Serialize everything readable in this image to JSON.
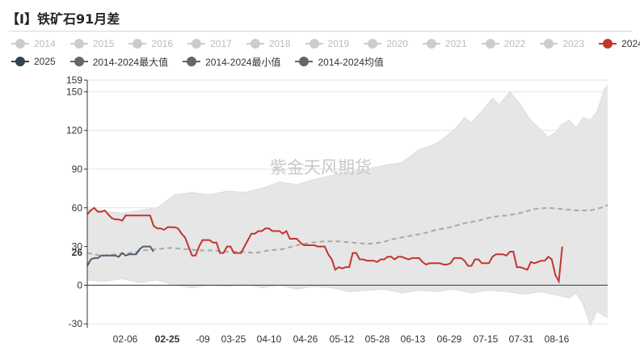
{
  "title": "【I】铁矿石91月差",
  "watermark": "紫金天风期货",
  "colors": {
    "band": "#e6e6e6",
    "avg": "#a9a9a9",
    "s2024": "#c23531",
    "s2025": "#4f5d6e",
    "legend_off": "#cccccc",
    "legend_dark": "#666666",
    "legend_2025": "#2f4554"
  },
  "legend": {
    "row1": [
      {
        "label": "2014",
        "state": "off"
      },
      {
        "label": "2015",
        "state": "off"
      },
      {
        "label": "2016",
        "state": "off"
      },
      {
        "label": "2017",
        "state": "off"
      },
      {
        "label": "2018",
        "state": "off"
      },
      {
        "label": "2019",
        "state": "off"
      },
      {
        "label": "2020",
        "state": "off"
      },
      {
        "label": "2021",
        "state": "off"
      },
      {
        "label": "2022",
        "state": "off"
      },
      {
        "label": "2023",
        "state": "off"
      },
      {
        "label": "2024",
        "state": "on-red"
      }
    ],
    "row2": [
      {
        "label": "2025",
        "state": "on-2025"
      },
      {
        "label": "2014-2024最大值",
        "state": "on-dark"
      },
      {
        "label": "2014-2024最小值",
        "state": "on-dark"
      },
      {
        "label": "2014-2024均值",
        "state": "on-dark"
      }
    ]
  },
  "chart_data": {
    "type": "line",
    "x_ticks": [
      "02-06",
      "02-25",
      "-09",
      "03-25",
      "04-10",
      "04-26",
      "05-12",
      "05-28",
      "06-13",
      "06-29",
      "07-15",
      "07-31",
      "08-16"
    ],
    "x_highlight": "02-25",
    "y_ticks": [
      -30,
      0,
      30,
      60,
      90,
      120,
      150,
      159
    ],
    "ylim": [
      -33,
      159
    ],
    "y_highlight": 26,
    "x_count": 150,
    "series": [
      {
        "name": "2014-2024最大值",
        "role": "max",
        "points": [
          [
            0,
            59
          ],
          [
            3,
            58
          ],
          [
            6,
            57
          ],
          [
            10,
            56
          ],
          [
            15,
            58
          ],
          [
            20,
            60
          ],
          [
            25,
            70
          ],
          [
            30,
            72
          ],
          [
            35,
            70
          ],
          [
            40,
            73
          ],
          [
            45,
            72
          ],
          [
            50,
            75
          ],
          [
            55,
            80
          ],
          [
            60,
            78
          ],
          [
            65,
            82
          ],
          [
            70,
            85
          ],
          [
            75,
            88
          ],
          [
            80,
            90
          ],
          [
            85,
            93
          ],
          [
            90,
            95
          ],
          [
            95,
            105
          ],
          [
            100,
            110
          ],
          [
            105,
            120
          ],
          [
            108,
            130
          ],
          [
            110,
            126
          ],
          [
            113,
            135
          ],
          [
            116,
            145
          ],
          [
            118,
            140
          ],
          [
            121,
            150
          ],
          [
            124,
            140
          ],
          [
            127,
            128
          ],
          [
            130,
            120
          ],
          [
            132,
            115
          ],
          [
            134,
            118
          ],
          [
            136,
            125
          ],
          [
            138,
            128
          ],
          [
            140,
            122
          ],
          [
            142,
            130
          ],
          [
            144,
            128
          ],
          [
            146,
            135
          ],
          [
            148,
            152
          ],
          [
            149,
            155
          ]
        ]
      },
      {
        "name": "2014-2024最小值",
        "role": "min",
        "points": [
          [
            0,
            4
          ],
          [
            5,
            3
          ],
          [
            10,
            5
          ],
          [
            15,
            2
          ],
          [
            20,
            4
          ],
          [
            25,
            0
          ],
          [
            30,
            -2
          ],
          [
            35,
            0
          ],
          [
            40,
            -1
          ],
          [
            45,
            1
          ],
          [
            50,
            -2
          ],
          [
            55,
            0
          ],
          [
            60,
            -3
          ],
          [
            65,
            -1
          ],
          [
            70,
            -2
          ],
          [
            75,
            -5
          ],
          [
            80,
            -4
          ],
          [
            85,
            -3
          ],
          [
            90,
            -6
          ],
          [
            95,
            -4
          ],
          [
            100,
            -5
          ],
          [
            105,
            -3
          ],
          [
            110,
            -6
          ],
          [
            115,
            -4
          ],
          [
            120,
            -5
          ],
          [
            125,
            -7
          ],
          [
            130,
            -5
          ],
          [
            135,
            -8
          ],
          [
            138,
            -10
          ],
          [
            140,
            -6
          ],
          [
            142,
            -15
          ],
          [
            144,
            -31
          ],
          [
            146,
            -20
          ],
          [
            148,
            -24
          ],
          [
            149,
            -25
          ]
        ]
      },
      {
        "name": "2014-2024均值",
        "role": "avg",
        "points": [
          [
            0,
            25
          ],
          [
            4,
            23
          ],
          [
            8,
            24
          ],
          [
            12,
            25
          ],
          [
            16,
            27
          ],
          [
            20,
            28
          ],
          [
            24,
            29
          ],
          [
            28,
            28
          ],
          [
            32,
            27
          ],
          [
            36,
            27
          ],
          [
            40,
            26
          ],
          [
            44,
            26
          ],
          [
            48,
            25
          ],
          [
            52,
            27
          ],
          [
            56,
            28
          ],
          [
            60,
            31
          ],
          [
            64,
            33
          ],
          [
            68,
            34
          ],
          [
            72,
            34
          ],
          [
            76,
            33
          ],
          [
            80,
            32
          ],
          [
            84,
            33
          ],
          [
            88,
            36
          ],
          [
            92,
            38
          ],
          [
            96,
            40
          ],
          [
            100,
            43
          ],
          [
            104,
            45
          ],
          [
            108,
            48
          ],
          [
            112,
            50
          ],
          [
            116,
            53
          ],
          [
            120,
            54
          ],
          [
            124,
            56
          ],
          [
            128,
            59
          ],
          [
            132,
            60
          ],
          [
            136,
            59
          ],
          [
            140,
            58
          ],
          [
            144,
            58
          ],
          [
            147,
            60
          ],
          [
            149,
            62
          ]
        ]
      },
      {
        "name": "2024",
        "role": "2024",
        "points": [
          [
            0,
            55
          ],
          [
            1,
            58
          ],
          [
            2,
            60
          ],
          [
            3,
            57
          ],
          [
            4,
            57
          ],
          [
            5,
            58
          ],
          [
            6,
            55
          ],
          [
            7,
            52
          ],
          [
            8,
            51
          ],
          [
            9,
            51
          ],
          [
            10,
            50
          ],
          [
            11,
            54
          ],
          [
            12,
            54
          ],
          [
            13,
            54
          ],
          [
            14,
            54
          ],
          [
            15,
            54
          ],
          [
            16,
            54
          ],
          [
            17,
            54
          ],
          [
            18,
            54
          ],
          [
            19,
            46
          ],
          [
            20,
            44
          ],
          [
            21,
            44
          ],
          [
            22,
            43
          ],
          [
            23,
            45
          ],
          [
            24,
            45
          ],
          [
            25,
            45
          ],
          [
            26,
            44
          ],
          [
            27,
            40
          ],
          [
            28,
            37
          ],
          [
            29,
            30
          ],
          [
            30,
            23
          ],
          [
            31,
            23
          ],
          [
            32,
            30
          ],
          [
            33,
            35
          ],
          [
            34,
            35
          ],
          [
            35,
            35
          ],
          [
            36,
            33
          ],
          [
            37,
            33
          ],
          [
            38,
            25
          ],
          [
            39,
            25
          ],
          [
            40,
            30
          ],
          [
            41,
            30
          ],
          [
            42,
            25
          ],
          [
            43,
            25
          ],
          [
            44,
            25
          ],
          [
            45,
            30
          ],
          [
            46,
            35
          ],
          [
            47,
            40
          ],
          [
            48,
            40
          ],
          [
            49,
            42
          ],
          [
            50,
            42
          ],
          [
            51,
            44
          ],
          [
            52,
            44
          ],
          [
            53,
            42
          ],
          [
            54,
            42
          ],
          [
            55,
            42
          ],
          [
            56,
            40
          ],
          [
            57,
            42
          ],
          [
            58,
            36
          ],
          [
            59,
            36
          ],
          [
            60,
            36
          ],
          [
            61,
            33
          ],
          [
            62,
            31
          ],
          [
            63,
            31
          ],
          [
            64,
            31
          ],
          [
            65,
            31
          ],
          [
            66,
            30
          ],
          [
            67,
            30
          ],
          [
            68,
            30
          ],
          [
            69,
            24
          ],
          [
            70,
            20
          ],
          [
            71,
            12
          ],
          [
            72,
            14
          ],
          [
            73,
            13
          ],
          [
            74,
            14
          ],
          [
            75,
            14
          ],
          [
            76,
            25
          ],
          [
            77,
            25
          ],
          [
            78,
            20
          ],
          [
            79,
            20
          ],
          [
            80,
            19
          ],
          [
            81,
            19
          ],
          [
            82,
            19
          ],
          [
            83,
            18
          ],
          [
            84,
            20
          ],
          [
            85,
            20
          ],
          [
            86,
            22
          ],
          [
            87,
            22
          ],
          [
            88,
            20
          ],
          [
            89,
            22
          ],
          [
            90,
            22
          ],
          [
            91,
            21
          ],
          [
            92,
            20
          ],
          [
            93,
            21
          ],
          [
            94,
            21
          ],
          [
            95,
            21
          ],
          [
            96,
            18
          ],
          [
            97,
            16
          ],
          [
            98,
            17
          ],
          [
            99,
            17
          ],
          [
            100,
            17
          ],
          [
            101,
            17
          ],
          [
            102,
            16
          ],
          [
            103,
            16
          ],
          [
            104,
            17
          ],
          [
            105,
            21
          ],
          [
            106,
            21
          ],
          [
            107,
            21
          ],
          [
            108,
            19
          ],
          [
            109,
            15
          ],
          [
            110,
            15
          ],
          [
            111,
            20
          ],
          [
            112,
            20
          ],
          [
            113,
            17
          ],
          [
            114,
            17
          ],
          [
            115,
            17
          ],
          [
            116,
            22
          ],
          [
            117,
            24
          ],
          [
            118,
            24
          ],
          [
            119,
            24
          ],
          [
            120,
            23
          ],
          [
            121,
            26
          ],
          [
            122,
            26
          ],
          [
            123,
            14
          ],
          [
            124,
            14
          ],
          [
            125,
            13
          ],
          [
            126,
            12
          ],
          [
            127,
            18
          ],
          [
            128,
            17
          ],
          [
            129,
            18
          ],
          [
            130,
            19
          ],
          [
            131,
            19
          ],
          [
            132,
            22
          ],
          [
            133,
            20
          ],
          [
            134,
            8
          ],
          [
            135,
            3
          ],
          [
            136,
            30
          ]
        ]
      },
      {
        "name": "2025",
        "role": "2025",
        "points": [
          [
            0,
            15
          ],
          [
            1,
            20
          ],
          [
            2,
            21
          ],
          [
            3,
            21
          ],
          [
            4,
            23
          ],
          [
            5,
            23
          ],
          [
            6,
            23
          ],
          [
            7,
            23
          ],
          [
            8,
            23
          ],
          [
            9,
            22
          ],
          [
            10,
            25
          ],
          [
            11,
            23
          ],
          [
            12,
            24
          ],
          [
            13,
            24
          ],
          [
            14,
            24
          ],
          [
            15,
            28
          ],
          [
            16,
            30
          ],
          [
            17,
            30
          ],
          [
            18,
            30
          ],
          [
            19,
            26
          ]
        ]
      }
    ]
  }
}
